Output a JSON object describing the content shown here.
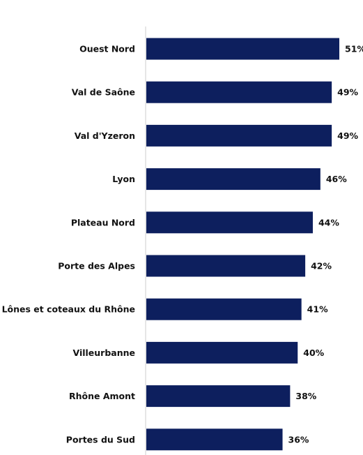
{
  "chart_data": {
    "type": "bar",
    "orientation": "horizontal",
    "categories": [
      "Ouest Nord",
      "Val de Saône",
      "Val d'Yzeron",
      "Lyon",
      "Plateau Nord",
      "Porte des Alpes",
      "Lônes et coteaux du Rhône",
      "Villeurbanne",
      "Rhône Amont",
      "Portes du Sud"
    ],
    "values": [
      51,
      49,
      49,
      46,
      44,
      42,
      41,
      40,
      38,
      36
    ],
    "value_labels": [
      "51%",
      "49%",
      "49%",
      "46%",
      "44%",
      "42%",
      "41%",
      "40%",
      "38%",
      "36%"
    ],
    "unit": "%",
    "xlim": [
      0,
      56
    ],
    "bar_color": "#0d1f5e",
    "axis_color": "#cccccc",
    "grid": false,
    "legend": "none",
    "title": "",
    "xlabel": "",
    "ylabel": ""
  }
}
